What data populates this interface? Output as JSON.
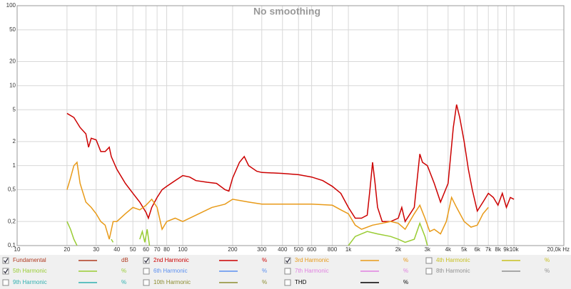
{
  "chart_data": {
    "type": "line",
    "title": "No smoothing",
    "xscale": "log",
    "yscale": "log",
    "grid": true,
    "xlim": [
      10,
      20000
    ],
    "ylim": [
      0.1,
      100
    ],
    "xticks": [
      10,
      20,
      30,
      40,
      50,
      60,
      70,
      80,
      100,
      200,
      300,
      400,
      500,
      600,
      800,
      {
        "value": 1000,
        "label": "1k"
      },
      {
        "value": 2000,
        "label": "2k"
      },
      {
        "value": 3000,
        "label": "3k"
      },
      {
        "value": 4000,
        "label": "4k"
      },
      {
        "value": 5000,
        "label": "5k"
      },
      {
        "value": 6000,
        "label": "6k"
      },
      {
        "value": 7000,
        "label": "7k"
      },
      {
        "value": 8000,
        "label": "8k"
      },
      {
        "value": 9000,
        "label": "9k"
      },
      {
        "value": 10000,
        "label": "10k"
      },
      {
        "value": 20000,
        "label": "20,0k Hz"
      }
    ],
    "yticks": [
      {
        "value": 0.1,
        "label": "0,1"
      },
      {
        "value": 0.2,
        "label": "0,2"
      },
      {
        "value": 0.5,
        "label": "0,5"
      },
      1,
      2,
      5,
      10,
      20,
      50,
      100
    ],
    "series": [
      {
        "name": "Fundamental",
        "color": "#b03a20",
        "unit": "dB",
        "checked": true
      },
      {
        "name": "2nd Harmonic",
        "color": "#cc0000",
        "unit": "%",
        "checked": true,
        "x": [
          20,
          22,
          24,
          26,
          27,
          28,
          30,
          32,
          34,
          36,
          37,
          40,
          45,
          50,
          55,
          60,
          62,
          65,
          70,
          75,
          80,
          90,
          100,
          110,
          120,
          140,
          160,
          180,
          190,
          200,
          220,
          235,
          250,
          280,
          300,
          400,
          500,
          600,
          700,
          800,
          900,
          1000,
          1100,
          1200,
          1300,
          1350,
          1400,
          1450,
          1500,
          1600,
          1800,
          2000,
          2100,
          2200,
          2500,
          2700,
          2800,
          3000,
          3300,
          3600,
          4000,
          4300,
          4500,
          4700,
          5000,
          5300,
          5600,
          6000,
          6500,
          7000,
          7500,
          8000,
          8500,
          9000,
          9500,
          10000
        ],
        "values": [
          4.5,
          4.0,
          3.0,
          2.5,
          1.7,
          2.2,
          2.1,
          1.5,
          1.5,
          1.7,
          1.3,
          0.9,
          0.6,
          0.45,
          0.35,
          0.26,
          0.22,
          0.3,
          0.4,
          0.5,
          0.55,
          0.65,
          0.75,
          0.72,
          0.65,
          0.62,
          0.6,
          0.5,
          0.48,
          0.7,
          1.1,
          1.3,
          1.0,
          0.85,
          0.82,
          0.8,
          0.77,
          0.72,
          0.65,
          0.55,
          0.45,
          0.3,
          0.22,
          0.22,
          0.24,
          0.5,
          1.1,
          0.6,
          0.3,
          0.2,
          0.2,
          0.22,
          0.3,
          0.2,
          0.3,
          1.4,
          1.1,
          1.0,
          0.6,
          0.35,
          0.6,
          3.0,
          5.8,
          4.0,
          2.0,
          0.9,
          0.5,
          0.27,
          0.35,
          0.45,
          0.4,
          0.32,
          0.45,
          0.3,
          0.4,
          0.38
        ]
      },
      {
        "name": "3rd Harmonic",
        "color": "#e89a18",
        "unit": "%",
        "checked": true,
        "x": [
          20,
          21,
          22,
          23,
          24,
          26,
          28,
          30,
          32,
          34,
          36,
          38,
          40,
          45,
          50,
          55,
          60,
          65,
          70,
          75,
          80,
          90,
          100,
          120,
          150,
          180,
          200,
          250,
          300,
          400,
          500,
          600,
          800,
          900,
          1000,
          1100,
          1200,
          1400,
          1600,
          1800,
          2000,
          2200,
          2500,
          2700,
          2900,
          3100,
          3300,
          3600,
          3900,
          4200,
          4500,
          5000,
          5500,
          6000,
          6500,
          7000
        ],
        "values": [
          0.5,
          0.7,
          1.0,
          1.1,
          0.6,
          0.35,
          0.3,
          0.25,
          0.2,
          0.18,
          0.12,
          0.2,
          0.2,
          0.25,
          0.3,
          0.28,
          0.32,
          0.38,
          0.3,
          0.16,
          0.2,
          0.22,
          0.2,
          0.24,
          0.3,
          0.33,
          0.38,
          0.35,
          0.33,
          0.33,
          0.33,
          0.33,
          0.32,
          0.28,
          0.25,
          0.18,
          0.16,
          0.18,
          0.19,
          0.2,
          0.19,
          0.16,
          0.25,
          0.32,
          0.22,
          0.15,
          0.16,
          0.14,
          0.2,
          0.4,
          0.3,
          0.2,
          0.17,
          0.18,
          0.25,
          0.3
        ]
      },
      {
        "name": "4th Harmonic",
        "color": "#c8c020",
        "unit": "%",
        "checked": false
      },
      {
        "name": "5th Harmonic",
        "color": "#99cc33",
        "unit": "%",
        "checked": true,
        "x": [
          20,
          21,
          22,
          23,
          24,
          37,
          38,
          39,
          55,
          57,
          59,
          61,
          63,
          64,
          1000,
          1100,
          1300,
          1500,
          1800,
          2000,
          2200,
          2500,
          2700,
          2900,
          3000
        ],
        "values": [
          0.2,
          0.16,
          0.12,
          0.1,
          null,
          0.12,
          0.11,
          null,
          0.12,
          0.15,
          0.11,
          0.16,
          0.1,
          null,
          0.1,
          0.13,
          0.15,
          0.14,
          0.13,
          0.12,
          0.11,
          0.12,
          0.19,
          0.13,
          0.1
        ]
      },
      {
        "name": "6th Harmonic",
        "color": "#5b8ff0",
        "unit": "%",
        "checked": false
      },
      {
        "name": "7th Harmonic",
        "color": "#e080e0",
        "unit": "%",
        "checked": false
      },
      {
        "name": "8th Harmonic",
        "color": "#909090",
        "unit": "%",
        "checked": false
      },
      {
        "name": "9th Harmonic",
        "color": "#30b0b0",
        "unit": "%",
        "checked": false
      },
      {
        "name": "10th Harmonic",
        "color": "#8c8c30",
        "unit": "%",
        "checked": false
      },
      {
        "name": "THD",
        "color": "#000000",
        "unit": "%",
        "checked": false
      }
    ]
  }
}
